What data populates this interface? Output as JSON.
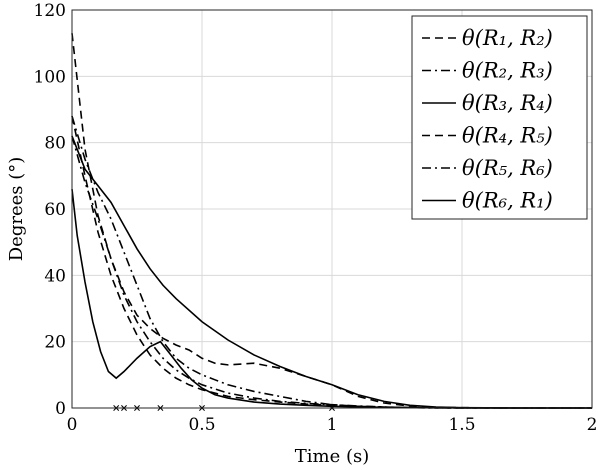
{
  "chart_data": {
    "type": "line",
    "xlabel": "Time (s)",
    "ylabel": "Degrees (°)",
    "xlim": [
      0,
      2
    ],
    "ylim": [
      0,
      120
    ],
    "xticks": [
      "0",
      "0.5",
      "1",
      "1.5",
      "2"
    ],
    "yticks": [
      "0",
      "20",
      "40",
      "60",
      "80",
      "100",
      "120"
    ],
    "grid": true,
    "legend_position": "top-right",
    "markers_on_x_axis": [
      0.17,
      0.2,
      0.25,
      0.34,
      0.5,
      1.0
    ],
    "series": [
      {
        "name": "θ(R1, R2)",
        "line_style": "dashed",
        "x": [
          0,
          0.05,
          0.1,
          0.15,
          0.2,
          0.25,
          0.3,
          0.35,
          0.4,
          0.45,
          0.5,
          0.55,
          0.6,
          0.7,
          0.8,
          0.9,
          1.0,
          1.1,
          1.2,
          1.3,
          1.4,
          1.5,
          1.7,
          2.0
        ],
        "y": [
          113,
          78,
          58,
          45,
          35,
          28,
          24,
          21,
          19,
          17.5,
          15,
          13.5,
          13,
          13.5,
          12,
          9.5,
          7,
          3.5,
          1.5,
          0.6,
          0.2,
          0.1,
          0,
          0
        ]
      },
      {
        "name": "θ(R2, R3)",
        "line_style": "dashdot",
        "x": [
          0,
          0.05,
          0.1,
          0.15,
          0.2,
          0.25,
          0.3,
          0.35,
          0.4,
          0.45,
          0.5,
          0.55,
          0.6,
          0.7,
          0.8,
          0.9,
          1.0,
          1.1,
          1.2,
          1.3,
          1.4,
          1.5,
          1.7,
          2.0
        ],
        "y": [
          88,
          75,
          65,
          57,
          47,
          37,
          27,
          20,
          15,
          12,
          10,
          8.5,
          7,
          5,
          3.5,
          2,
          1,
          0.5,
          0.2,
          0.1,
          0,
          0,
          0,
          0
        ]
      },
      {
        "name": "θ(R3, R4)",
        "line_style": "solid",
        "x": [
          0,
          0.05,
          0.1,
          0.15,
          0.2,
          0.25,
          0.3,
          0.35,
          0.4,
          0.5,
          0.6,
          0.7,
          0.8,
          0.9,
          1.0,
          1.1,
          1.2,
          1.3,
          1.4,
          1.5,
          1.7,
          2.0
        ],
        "y": [
          82,
          72,
          67,
          62,
          55,
          48,
          42,
          37,
          33,
          26,
          20.5,
          16,
          12.5,
          9.5,
          7,
          4,
          2,
          0.8,
          0.3,
          0.1,
          0,
          0
        ]
      },
      {
        "name": "θ(R4, R5)",
        "line_style": "dashed",
        "x": [
          0,
          0.05,
          0.1,
          0.15,
          0.2,
          0.25,
          0.3,
          0.35,
          0.4,
          0.45,
          0.5,
          0.6,
          0.7,
          0.8,
          0.9,
          1.0,
          1.1,
          1.2,
          1.3,
          1.5,
          2.0
        ],
        "y": [
          88,
          70,
          53,
          40,
          30,
          22,
          16,
          12,
          9,
          7,
          5.5,
          3.5,
          2.5,
          1.8,
          1.2,
          0.8,
          0.5,
          0.3,
          0.1,
          0,
          0
        ]
      },
      {
        "name": "θ(R5, R6)",
        "line_style": "dashdot",
        "x": [
          0,
          0.05,
          0.1,
          0.15,
          0.2,
          0.25,
          0.3,
          0.35,
          0.4,
          0.45,
          0.5,
          0.6,
          0.7,
          0.8,
          0.9,
          1.0,
          1.1,
          1.2,
          1.3,
          1.5,
          2.0
        ],
        "y": [
          82,
          68,
          57,
          45,
          34,
          26,
          20,
          15,
          11.5,
          9,
          7,
          4.5,
          3,
          2,
          1.4,
          1,
          0.6,
          0.3,
          0.1,
          0,
          0
        ]
      },
      {
        "name": "θ(R6, R1)",
        "line_style": "solid",
        "x": [
          0,
          0.02,
          0.05,
          0.08,
          0.11,
          0.14,
          0.17,
          0.2,
          0.25,
          0.3,
          0.34,
          0.38,
          0.42,
          0.46,
          0.5,
          0.55,
          0.6,
          0.7,
          0.8,
          0.9,
          1.0,
          1.2,
          1.5,
          2.0
        ],
        "y": [
          66,
          52,
          38,
          26,
          17,
          11,
          9,
          11,
          15,
          18.5,
          20,
          16,
          12,
          8.5,
          6,
          4,
          3,
          1.8,
          1.2,
          0.8,
          0.5,
          0.2,
          0,
          0
        ]
      }
    ]
  },
  "legend": {
    "entries": [
      "θ(R1, R2)",
      "θ(R2, R3)",
      "θ(R3, R4)",
      "θ(R4, R5)",
      "θ(R5, R6)",
      "θ(R6, R1)"
    ]
  }
}
